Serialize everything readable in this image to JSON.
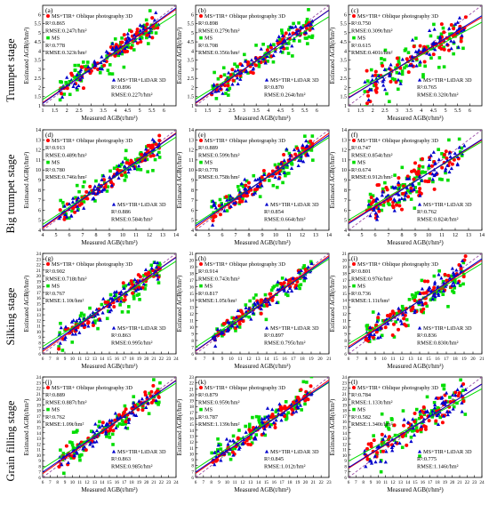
{
  "figure": {
    "stage_labels": [
      "Trumpet stage",
      "Big trumpet stage",
      "Silking stage",
      "Grain filling stage"
    ],
    "xlabel": "Measured AGB(t/hm²)",
    "ylabel": "Estimated AGB(t/hm²)",
    "legend_labels": {
      "red": "MS+TIR+ Oblique photography 3D",
      "green": "MS",
      "blue": "MS+TIR+LiDAR 3D"
    },
    "colors": {
      "red": "#ff0000",
      "green": "#00dd00",
      "blue": "#0000cc",
      "ref_line": "#9b4fa6"
    }
  },
  "chart_data": [
    {
      "type": "scatter",
      "panel": "(a)",
      "ticks": [
        1.0,
        1.5,
        2.0,
        2.5,
        3.0,
        3.5,
        4.0,
        4.5,
        5.0,
        5.5,
        6.0
      ],
      "xlim": [
        1.0,
        6.5
      ],
      "ylim": [
        1.0,
        6.5
      ],
      "red": {
        "r2": "0.865",
        "rmse": "0.247t/hm²",
        "slope": 0.93,
        "intercept": 0.24
      },
      "green": {
        "r2": "0.778",
        "rmse": "0.323t/hm²",
        "slope": 0.85,
        "intercept": 0.5
      },
      "blue": {
        "r2": "0.896",
        "rmse": "0.227t/hm²",
        "slope": 0.95,
        "intercept": 0.18
      }
    },
    {
      "type": "scatter",
      "panel": "(b)",
      "ticks": [
        1.0,
        1.5,
        2.0,
        2.5,
        3.0,
        3.5,
        4.0,
        4.5,
        5.0,
        5.5,
        6.0
      ],
      "xlim": [
        1.0,
        6.5
      ],
      "ylim": [
        1.0,
        6.5
      ],
      "red": {
        "r2": "0.898",
        "rmse": "0.279t/hm²",
        "slope": 0.93,
        "intercept": 0.2
      },
      "green": {
        "r2": "0.708",
        "rmse": "0.356t/hm²",
        "slope": 0.82,
        "intercept": 0.55
      },
      "blue": {
        "r2": "0.870",
        "rmse": "0.264t/hm²",
        "slope": 0.92,
        "intercept": 0.25
      }
    },
    {
      "type": "scatter",
      "panel": "(c)",
      "ticks": [
        1.0,
        1.5,
        2.0,
        2.5,
        3.0,
        3.5,
        4.0,
        4.5,
        5.0,
        5.5,
        6.0
      ],
      "xlim": [
        1.0,
        6.5
      ],
      "ylim": [
        1.0,
        6.5
      ],
      "red": {
        "r2": "0.750",
        "rmse": "0.309t/hm²",
        "slope": 0.8,
        "intercept": 0.65
      },
      "green": {
        "r2": "0.615",
        "rmse": "0.401t/hm²",
        "slope": 0.72,
        "intercept": 0.9
      },
      "blue": {
        "r2": "0.765",
        "rmse": "0.320t/hm²",
        "slope": 0.82,
        "intercept": 0.6
      }
    },
    {
      "type": "scatter",
      "panel": "(d)",
      "ticks": [
        4,
        5,
        6,
        7,
        8,
        9,
        10,
        11,
        12,
        13,
        14
      ],
      "xlim": [
        4,
        14
      ],
      "ylim": [
        4,
        14
      ],
      "red": {
        "r2": "0.913",
        "rmse": "0.489t/hm²",
        "slope": 0.95,
        "intercept": 0.4
      },
      "green": {
        "r2": "0.780",
        "rmse": "0.746t/hm²",
        "slope": 0.87,
        "intercept": 1.1
      },
      "blue": {
        "r2": "0.886",
        "rmse": "0.584t/hm²",
        "slope": 0.93,
        "intercept": 0.6
      }
    },
    {
      "type": "scatter",
      "panel": "(e)",
      "ticks": [
        4,
        5,
        6,
        7,
        8,
        9,
        10,
        11,
        12,
        13,
        14
      ],
      "xlim": [
        4,
        14
      ],
      "ylim": [
        4,
        14
      ],
      "red": {
        "r2": "0.889",
        "rmse": "0.599t/hm²",
        "slope": 0.94,
        "intercept": 0.5
      },
      "green": {
        "r2": "0.778",
        "rmse": "0.758t/hm²",
        "slope": 0.86,
        "intercept": 1.2
      },
      "blue": {
        "r2": "0.854",
        "rmse": "0.664t/hm²",
        "slope": 0.9,
        "intercept": 0.85
      }
    },
    {
      "type": "scatter",
      "panel": "(f)",
      "ticks": [
        4,
        5,
        6,
        7,
        8,
        9,
        10,
        11,
        12,
        13,
        14
      ],
      "xlim": [
        4,
        14
      ],
      "ylim": [
        4,
        14
      ],
      "red": {
        "r2": "0.747",
        "rmse": "0.854t/hm²",
        "slope": 0.82,
        "intercept": 1.5
      },
      "green": {
        "r2": "0.674",
        "rmse": "0.912t/hm²",
        "slope": 0.78,
        "intercept": 1.9
      },
      "blue": {
        "r2": "0.762",
        "rmse": "0.824t/hm²",
        "slope": 0.84,
        "intercept": 1.3
      }
    },
    {
      "type": "scatter",
      "panel": "(g)",
      "ticks": [
        6,
        7,
        8,
        9,
        10,
        11,
        12,
        13,
        14,
        15,
        16,
        17,
        18,
        19,
        20,
        21,
        22,
        23,
        24
      ],
      "xlim": [
        6,
        24
      ],
      "ylim": [
        6,
        24
      ],
      "red": {
        "r2": "0.902",
        "rmse": "0.718t/hm²",
        "slope": 0.94,
        "intercept": 0.8
      },
      "green": {
        "r2": "0.767",
        "rmse": "1.10t/hm²",
        "slope": 0.85,
        "intercept": 2.2
      },
      "blue": {
        "r2": "0.863",
        "rmse": "0.995t/hm²",
        "slope": 0.92,
        "intercept": 1.2
      }
    },
    {
      "type": "scatter",
      "panel": "(h)",
      "ticks": [
        6,
        7,
        8,
        9,
        10,
        11,
        12,
        13,
        14,
        15,
        16,
        17,
        18,
        19,
        20,
        21
      ],
      "xlim": [
        6,
        21
      ],
      "ylim": [
        6,
        21
      ],
      "red": {
        "r2": "0.914",
        "rmse": "0.743t/hm²",
        "slope": 0.95,
        "intercept": 0.7
      },
      "green": {
        "r2": "0.817",
        "rmse": "1.05t/hm²",
        "slope": 0.88,
        "intercept": 1.7
      },
      "blue": {
        "r2": "0.897",
        "rmse": "0.795t/hm²",
        "slope": 0.93,
        "intercept": 0.9
      }
    },
    {
      "type": "scatter",
      "panel": "(i)",
      "ticks": [
        6,
        7,
        8,
        9,
        10,
        11,
        12,
        13,
        14,
        15,
        16,
        17,
        18,
        19,
        20,
        21
      ],
      "xlim": [
        6,
        21
      ],
      "ylim": [
        6,
        21
      ],
      "red": {
        "r2": "0.801",
        "rmse": "0.976t/hm²",
        "slope": 0.86,
        "intercept": 1.9
      },
      "green": {
        "r2": "0.736",
        "rmse": "1.11t/hm²",
        "slope": 0.8,
        "intercept": 2.7
      },
      "blue": {
        "r2": "0.836",
        "rmse": "0.830t/hm²",
        "slope": 0.89,
        "intercept": 1.5
      }
    },
    {
      "type": "scatter",
      "panel": "(j)",
      "ticks": [
        6,
        7,
        8,
        9,
        10,
        11,
        12,
        13,
        14,
        15,
        16,
        17,
        18,
        19,
        20,
        21,
        22,
        23,
        24
      ],
      "xlim": [
        6,
        24
      ],
      "ylim": [
        6,
        24
      ],
      "red": {
        "r2": "0.889",
        "rmse": "0.887t/hm²",
        "slope": 0.93,
        "intercept": 1.1
      },
      "green": {
        "r2": "0.762",
        "rmse": "1.09t/hm²",
        "slope": 0.85,
        "intercept": 2.5
      },
      "blue": {
        "r2": "0.863",
        "rmse": "0.985t/hm²",
        "slope": 0.91,
        "intercept": 1.5
      }
    },
    {
      "type": "scatter",
      "panel": "(k)",
      "ticks": [
        6,
        7,
        8,
        9,
        10,
        11,
        12,
        13,
        14,
        15,
        16,
        17,
        18,
        19,
        20,
        21,
        22,
        23
      ],
      "xlim": [
        6,
        23
      ],
      "ylim": [
        6,
        23
      ],
      "red": {
        "r2": "0.879",
        "rmse": "0.959t/hm²",
        "slope": 0.93,
        "intercept": 1.1
      },
      "green": {
        "r2": "0.787",
        "rmse": "1.139t/hm²",
        "slope": 0.86,
        "intercept": 2.3
      },
      "blue": {
        "r2": "0.845",
        "rmse": "1.012t/hm²",
        "slope": 0.9,
        "intercept": 1.5
      }
    },
    {
      "type": "scatter",
      "panel": "(l)",
      "ticks": [
        6,
        7,
        8,
        9,
        10,
        11,
        12,
        13,
        14,
        15,
        16,
        17,
        18,
        19,
        20,
        21,
        22,
        23,
        24
      ],
      "xlim": [
        6,
        24
      ],
      "ylim": [
        6,
        24
      ],
      "red": {
        "r2": "0.784",
        "rmse": "1.133t/hm²",
        "slope": 0.84,
        "intercept": 2.6
      },
      "green": {
        "r2": "0.582",
        "rmse": "1.340t/hm²",
        "slope": 0.72,
        "intercept": 4.6
      },
      "blue": {
        "r2": "0.775",
        "rmse": "1.146t/hm²",
        "slope": 0.83,
        "intercept": 2.8
      }
    }
  ]
}
